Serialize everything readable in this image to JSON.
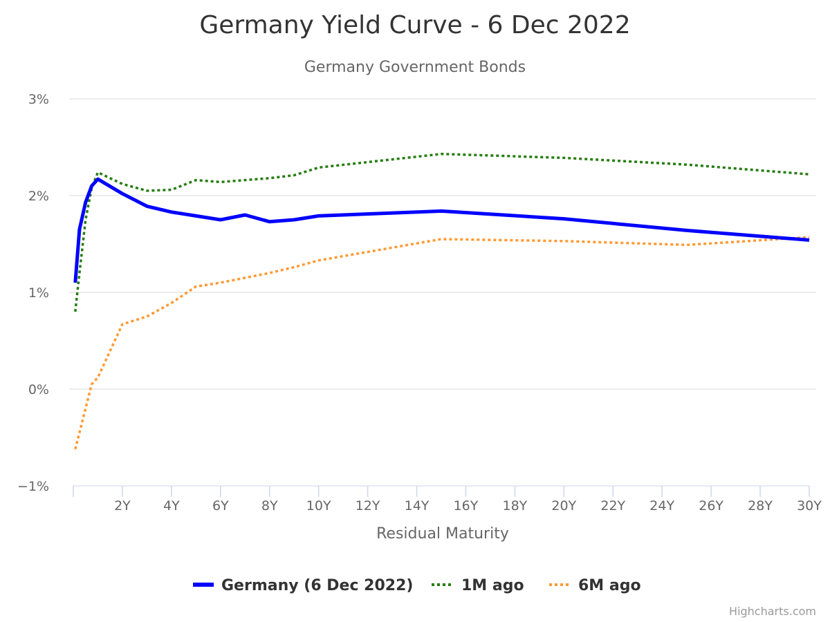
{
  "chart_data": {
    "type": "line",
    "title": "Germany Yield Curve - 6 Dec 2022",
    "subtitle": "Germany Government Bonds",
    "xlabel": "Residual Maturity",
    "ylabel": "",
    "xlim": [
      0,
      30
    ],
    "ylim": [
      -1,
      3
    ],
    "x_tick_values": [
      2,
      4,
      6,
      8,
      10,
      12,
      14,
      16,
      18,
      20,
      22,
      24,
      26,
      28,
      30
    ],
    "x_tick_labels": [
      "2Y",
      "4Y",
      "6Y",
      "8Y",
      "10Y",
      "12Y",
      "14Y",
      "16Y",
      "18Y",
      "20Y",
      "22Y",
      "24Y",
      "26Y",
      "28Y",
      "30Y"
    ],
    "y_tick_values": [
      3,
      2,
      1,
      0,
      -1
    ],
    "y_tick_labels": [
      "3%",
      "2%",
      "1%",
      "0%",
      "−1%"
    ],
    "grid": "horizontal",
    "legend_position": "bottom-center",
    "series": [
      {
        "name": "Germany (6 Dec 2022)",
        "color": "#0000ff",
        "style": "solid",
        "points": [
          [
            0.08,
            1.1
          ],
          [
            0.25,
            1.65
          ],
          [
            0.5,
            1.93
          ],
          [
            0.75,
            2.1
          ],
          [
            1,
            2.17
          ],
          [
            2,
            2.02
          ],
          [
            3,
            1.89
          ],
          [
            4,
            1.83
          ],
          [
            5,
            1.79
          ],
          [
            6,
            1.75
          ],
          [
            7,
            1.8
          ],
          [
            8,
            1.73
          ],
          [
            9,
            1.75
          ],
          [
            10,
            1.79
          ],
          [
            15,
            1.84
          ],
          [
            20,
            1.76
          ],
          [
            25,
            1.64
          ],
          [
            30,
            1.54
          ]
        ]
      },
      {
        "name": "1M ago",
        "color": "#267d12",
        "style": "dotted",
        "points": [
          [
            0.08,
            0.8
          ],
          [
            0.25,
            1.2
          ],
          [
            0.5,
            1.75
          ],
          [
            0.75,
            2.08
          ],
          [
            1,
            2.24
          ],
          [
            2,
            2.12
          ],
          [
            3,
            2.05
          ],
          [
            4,
            2.06
          ],
          [
            5,
            2.16
          ],
          [
            6,
            2.14
          ],
          [
            7,
            2.16
          ],
          [
            8,
            2.18
          ],
          [
            9,
            2.21
          ],
          [
            10,
            2.29
          ],
          [
            15,
            2.43
          ],
          [
            20,
            2.39
          ],
          [
            25,
            2.32
          ],
          [
            30,
            2.22
          ]
        ]
      },
      {
        "name": "6M ago",
        "color": "#ff9933",
        "style": "dotted",
        "points": [
          [
            0.08,
            -0.62
          ],
          [
            0.25,
            -0.45
          ],
          [
            0.5,
            -0.2
          ],
          [
            0.75,
            0.05
          ],
          [
            1,
            0.12
          ],
          [
            2,
            0.67
          ],
          [
            3,
            0.75
          ],
          [
            4,
            0.89
          ],
          [
            5,
            1.06
          ],
          [
            6,
            1.1
          ],
          [
            7,
            1.15
          ],
          [
            8,
            1.2
          ],
          [
            9,
            1.26
          ],
          [
            10,
            1.33
          ],
          [
            15,
            1.55
          ],
          [
            20,
            1.53
          ],
          [
            25,
            1.49
          ],
          [
            30,
            1.57
          ]
        ]
      }
    ]
  },
  "credits": "Highcharts.com"
}
